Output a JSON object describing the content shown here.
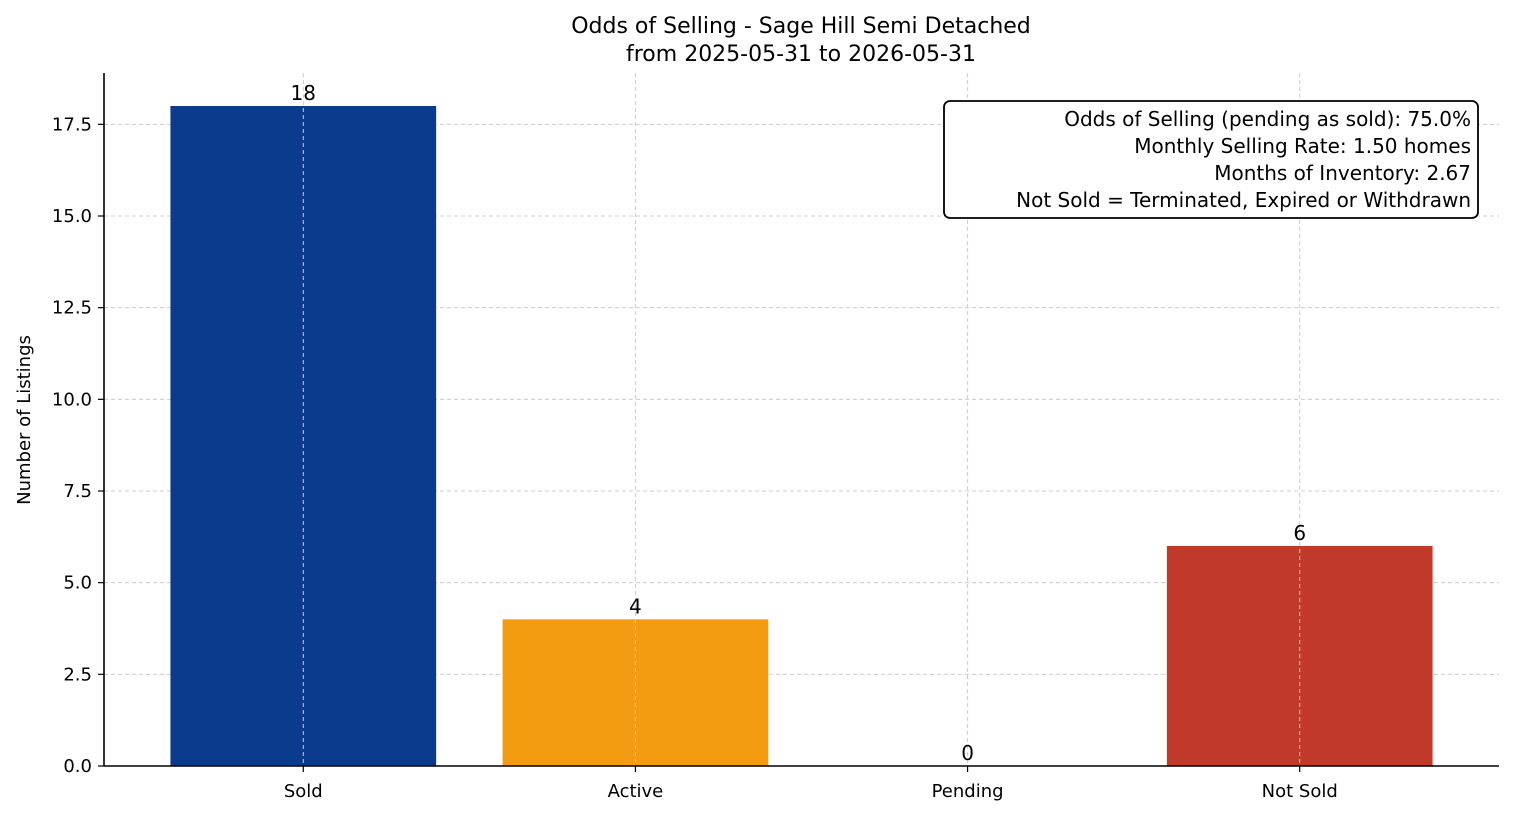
{
  "chart_data": {
    "type": "bar",
    "title_line1": "Odds of Selling - Sage Hill Semi Detached",
    "title_line2": "from 2025-05-31 to 2026-05-31",
    "xlabel": "",
    "ylabel": "Number of Listings",
    "categories": [
      "Sold",
      "Active",
      "Pending",
      "Not Sold"
    ],
    "values": [
      18,
      4,
      0,
      6
    ],
    "value_labels": [
      "18",
      "4",
      "0",
      "6"
    ],
    "colors": [
      "#0b3b8c",
      "#f39c12",
      "#2e8b57",
      "#c0392b"
    ],
    "ylim": [
      0,
      18.9
    ],
    "yticks": [
      0.0,
      2.5,
      5.0,
      7.5,
      10.0,
      12.5,
      15.0,
      17.5
    ],
    "ytick_labels": [
      "0.0",
      "2.5",
      "5.0",
      "7.5",
      "10.0",
      "12.5",
      "15.0",
      "17.5"
    ],
    "grid": true,
    "info_box": {
      "placement": "top-right",
      "lines": [
        "Odds of Selling (pending as sold): 75.0%",
        "Monthly Selling Rate: 1.50 homes",
        "Months of Inventory: 2.67",
        "Not Sold = Terminated, Expired or Withdrawn"
      ]
    }
  }
}
